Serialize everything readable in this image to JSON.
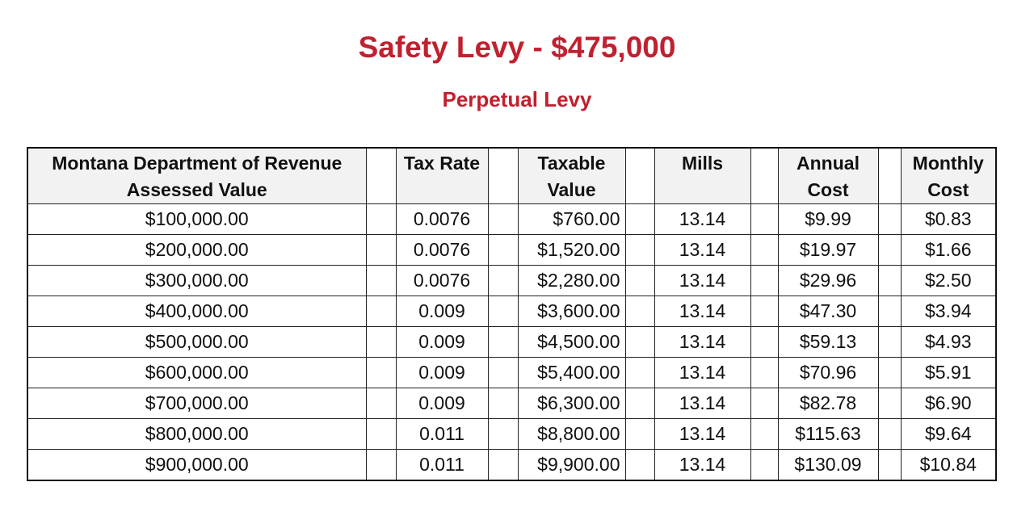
{
  "title": "Safety Levy - $475,000",
  "subtitle": "Perpetual Levy",
  "table": {
    "headers": {
      "assessed_line1": "Montana Department of Revenue",
      "assessed_line2": "Assessed Value",
      "tax_rate": "Tax Rate",
      "taxable_line1": "Taxable",
      "taxable_line2": "Value",
      "mills": "Mills",
      "annual_line1": "Annual",
      "annual_line2": "Cost",
      "monthly_line1": "Monthly",
      "monthly_line2": "Cost"
    },
    "rows": [
      {
        "assessed": "$100,000.00",
        "rate": "0.0076",
        "taxable": "$760.00",
        "mills": "13.14",
        "annual": "$9.99",
        "monthly": "$0.83"
      },
      {
        "assessed": "$200,000.00",
        "rate": "0.0076",
        "taxable": "$1,520.00",
        "mills": "13.14",
        "annual": "$19.97",
        "monthly": "$1.66"
      },
      {
        "assessed": "$300,000.00",
        "rate": "0.0076",
        "taxable": "$2,280.00",
        "mills": "13.14",
        "annual": "$29.96",
        "monthly": "$2.50"
      },
      {
        "assessed": "$400,000.00",
        "rate": "0.009",
        "taxable": "$3,600.00",
        "mills": "13.14",
        "annual": "$47.30",
        "monthly": "$3.94"
      },
      {
        "assessed": "$500,000.00",
        "rate": "0.009",
        "taxable": "$4,500.00",
        "mills": "13.14",
        "annual": "$59.13",
        "monthly": "$4.93"
      },
      {
        "assessed": "$600,000.00",
        "rate": "0.009",
        "taxable": "$5,400.00",
        "mills": "13.14",
        "annual": "$70.96",
        "monthly": "$5.91"
      },
      {
        "assessed": "$700,000.00",
        "rate": "0.009",
        "taxable": "$6,300.00",
        "mills": "13.14",
        "annual": "$82.78",
        "monthly": "$6.90"
      },
      {
        "assessed": "$800,000.00",
        "rate": "0.011",
        "taxable": "$8,800.00",
        "mills": "13.14",
        "annual": "$115.63",
        "monthly": "$9.64"
      },
      {
        "assessed": "$900,000.00",
        "rate": "0.011",
        "taxable": "$9,900.00",
        "mills": "13.14",
        "annual": "$130.09",
        "monthly": "$10.84"
      }
    ]
  },
  "colors": {
    "title": "#c0202f",
    "header_bg": "#f2f2f2"
  }
}
